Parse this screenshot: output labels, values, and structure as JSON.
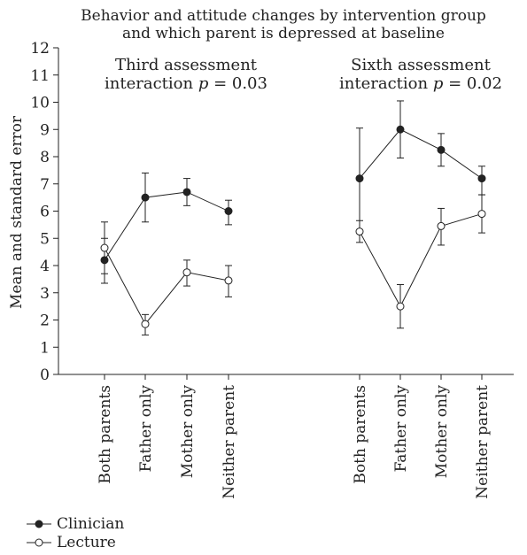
{
  "chart_data": {
    "type": "line",
    "title_line1": "Behavior and attitude changes by intervention group",
    "title_line2": "and which parent is depressed at baseline",
    "ylabel": "Mean and standard error",
    "ylim": [
      0,
      12
    ],
    "yticks": [
      0,
      1,
      2,
      3,
      4,
      5,
      6,
      7,
      8,
      9,
      10,
      11,
      12
    ],
    "grid": false,
    "legend_position": "bottom-left",
    "panels": [
      {
        "annotation_line1": "Third assessment",
        "annotation_prefix": "interaction ",
        "annotation_p": "p",
        "annotation_suffix": " = 0.03",
        "categories": [
          "Both parents",
          "Father only",
          "Mother only",
          "Neither parent"
        ],
        "series": [
          {
            "name": "Clinician",
            "values": [
              4.2,
              6.5,
              6.7,
              6.0
            ],
            "err_low": [
              3.35,
              5.6,
              6.2,
              5.5
            ],
            "err_high": [
              5.0,
              7.4,
              7.2,
              6.4
            ]
          },
          {
            "name": "Lecture",
            "values": [
              4.65,
              1.85,
              3.75,
              3.45
            ],
            "err_low": [
              3.7,
              1.45,
              3.25,
              2.85
            ],
            "err_high": [
              5.6,
              2.2,
              4.2,
              4.0
            ]
          }
        ]
      },
      {
        "annotation_line1": "Sixth assessment",
        "annotation_prefix": "interaction ",
        "annotation_p": "p",
        "annotation_suffix": " = 0.02",
        "categories": [
          "Both parents",
          "Father only",
          "Mother only",
          "Neither parent"
        ],
        "series": [
          {
            "name": "Clinician",
            "values": [
              7.2,
              9.0,
              8.25,
              7.2
            ],
            "err_low": [
              5.3,
              7.95,
              7.65,
              6.6
            ],
            "err_high": [
              9.05,
              10.05,
              8.85,
              7.65
            ]
          },
          {
            "name": "Lecture",
            "values": [
              5.25,
              2.5,
              5.45,
              5.9
            ],
            "err_low": [
              4.85,
              1.7,
              4.75,
              5.2
            ],
            "err_high": [
              5.65,
              3.3,
              6.1,
              6.6
            ]
          }
        ]
      }
    ],
    "series_styles": [
      {
        "name": "Clinician",
        "marker_fill": "#222222",
        "color": "#222222"
      },
      {
        "name": "Lecture",
        "marker_fill": "#ffffff",
        "color": "#222222"
      }
    ]
  }
}
